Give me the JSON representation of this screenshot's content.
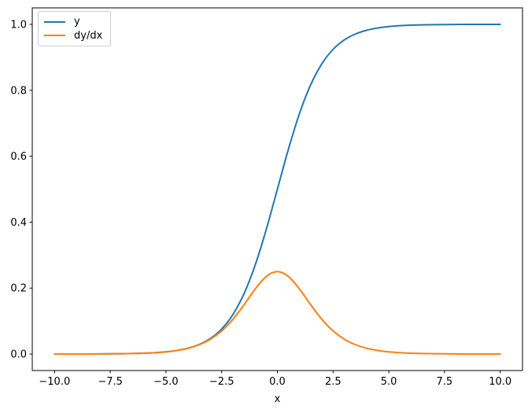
{
  "chart_data": {
    "type": "line",
    "title": "",
    "xlabel": "x",
    "ylabel": "",
    "xlim": [
      -11,
      11
    ],
    "ylim": [
      -0.05,
      1.05
    ],
    "grid": false,
    "legend_position": "upper left",
    "xtick_values": [
      -10.0,
      -7.5,
      -5.0,
      -2.5,
      0.0,
      2.5,
      5.0,
      7.5,
      10.0
    ],
    "xtick_labels": [
      "−10.0",
      "−7.5",
      "−5.0",
      "−2.5",
      "0.0",
      "2.5",
      "5.0",
      "7.5",
      "10.0"
    ],
    "ytick_values": [
      0.0,
      0.2,
      0.4,
      0.6,
      0.8,
      1.0
    ],
    "ytick_labels": [
      "0.0",
      "0.2",
      "0.4",
      "0.6",
      "0.8",
      "1.0"
    ],
    "x": [
      -10,
      -9.5,
      -9,
      -8.5,
      -8,
      -7.5,
      -7,
      -6.5,
      -6,
      -5.5,
      -5,
      -4.5,
      -4,
      -3.5,
      -3,
      -2.5,
      -2,
      -1.5,
      -1,
      -0.5,
      0,
      0.5,
      1,
      1.5,
      2,
      2.5,
      3,
      3.5,
      4,
      4.5,
      5,
      5.5,
      6,
      6.5,
      7,
      7.5,
      8,
      8.5,
      9,
      9.5,
      10
    ],
    "series": [
      {
        "name": "y",
        "color": "#1f77b4",
        "values": [
          5e-05,
          7e-05,
          0.00012,
          0.0002,
          0.00034,
          0.00055,
          0.00091,
          0.0015,
          0.00247,
          0.00407,
          0.00669,
          0.01099,
          0.01799,
          0.02931,
          0.04743,
          0.07586,
          0.1192,
          0.18243,
          0.26894,
          0.37754,
          0.5,
          0.62246,
          0.73106,
          0.81757,
          0.8808,
          0.92414,
          0.95257,
          0.97069,
          0.98201,
          0.98901,
          0.99331,
          0.99593,
          0.99753,
          0.9985,
          0.99909,
          0.99945,
          0.99966,
          0.9998,
          0.99988,
          0.99993,
          0.99995
        ]
      },
      {
        "name": "dy/dx",
        "color": "#ff7f0e",
        "values": [
          5e-05,
          7e-05,
          0.00012,
          0.0002,
          0.00033,
          0.00055,
          0.00091,
          0.0015,
          0.00247,
          0.00405,
          0.00665,
          0.01088,
          0.01766,
          0.02845,
          0.04518,
          0.0701,
          0.10499,
          0.14915,
          0.19661,
          0.235,
          0.25,
          0.235,
          0.19661,
          0.14915,
          0.10499,
          0.0701,
          0.04518,
          0.02845,
          0.01766,
          0.01088,
          0.00665,
          0.00405,
          0.00247,
          0.0015,
          0.00091,
          0.00055,
          0.00033,
          0.0002,
          0.00012,
          7e-05,
          5e-05
        ]
      }
    ],
    "spine_color": "#000000",
    "background_color": "#ffffff"
  }
}
